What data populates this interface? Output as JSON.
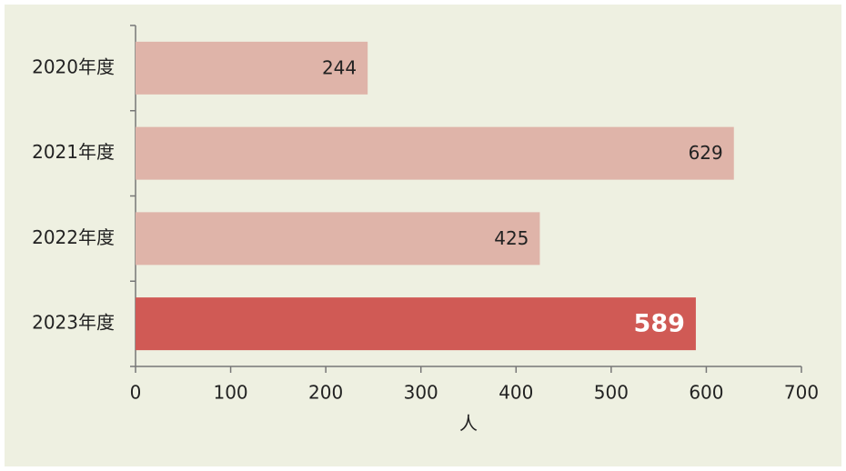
{
  "chart_data": {
    "type": "hbar",
    "categories": [
      "2020年度",
      "2021年度",
      "2022年度",
      "2023年度"
    ],
    "values": [
      244,
      629,
      425,
      589
    ],
    "colors": [
      "#dfb4a9",
      "#dfb4a9",
      "#dfb4a9",
      "#d05a55"
    ],
    "xlabel": "人",
    "xlim": [
      0,
      700
    ],
    "xticks": [
      0,
      100,
      200,
      300,
      400,
      500,
      600,
      700
    ]
  }
}
